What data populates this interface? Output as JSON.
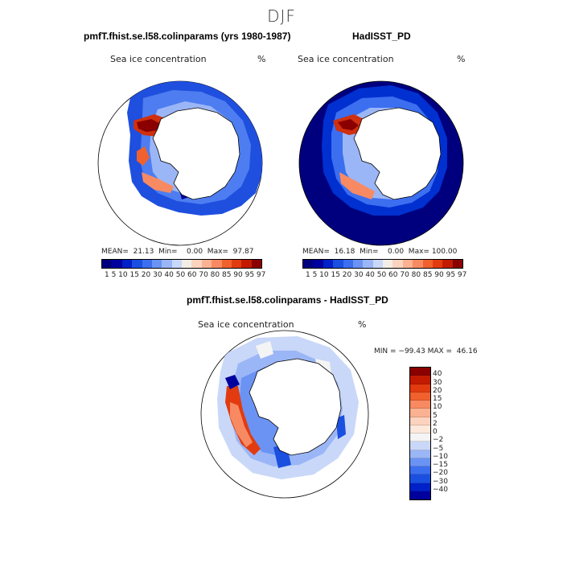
{
  "figure": {
    "title": "DJF"
  },
  "panels": {
    "left": {
      "title": "pmfT.fhist.se.l58.colinparams (yrs 1980-1987)",
      "field_label": "Sea ice concentration",
      "unit": "%",
      "stats": "MEAN=  21.13  Min=    0.00  Max=  97.87"
    },
    "right": {
      "title": "HadISST_PD",
      "field_label": "Sea ice concentration",
      "unit": "%",
      "stats": "MEAN=  16.18  Min=    0.00  Max= 100.00"
    },
    "diff": {
      "title": "pmfT.fhist.se.l58.colinparams - HadISST_PD",
      "field_label": "Sea ice concentration",
      "unit": "%",
      "stats": "MIN = −99.43 MAX =  46.16"
    }
  },
  "colorbars": {
    "concentration_labels": "1  5  10 15 20 30 40 50 60 70 80 85 90 95 97",
    "concentration_colors": [
      "#00007f",
      "#00009e",
      "#0020c8",
      "#1a4fe0",
      "#3c6ef0",
      "#6b93f4",
      "#9bb6f6",
      "#c9d8f8",
      "#f2eee6",
      "#fcd3bf",
      "#fab292",
      "#f78a62",
      "#f0612e",
      "#e23b10",
      "#c21b00",
      "#8a0000"
    ],
    "difference_labels": [
      "40",
      "30",
      "20",
      "15",
      "10",
      "5",
      "2",
      "0",
      "−2",
      "−5",
      "−10",
      "−15",
      "−20",
      "−30",
      "−40"
    ],
    "difference_colors": [
      "#8a0000",
      "#c21b00",
      "#e23b10",
      "#f0612e",
      "#f78a62",
      "#fab292",
      "#fcd3bf",
      "#fde8dc",
      "#f4f4f4",
      "#c9d8f8",
      "#9bb6f6",
      "#6b93f4",
      "#3c6ef0",
      "#1a4fe0",
      "#0020c8",
      "#00009e"
    ]
  }
}
